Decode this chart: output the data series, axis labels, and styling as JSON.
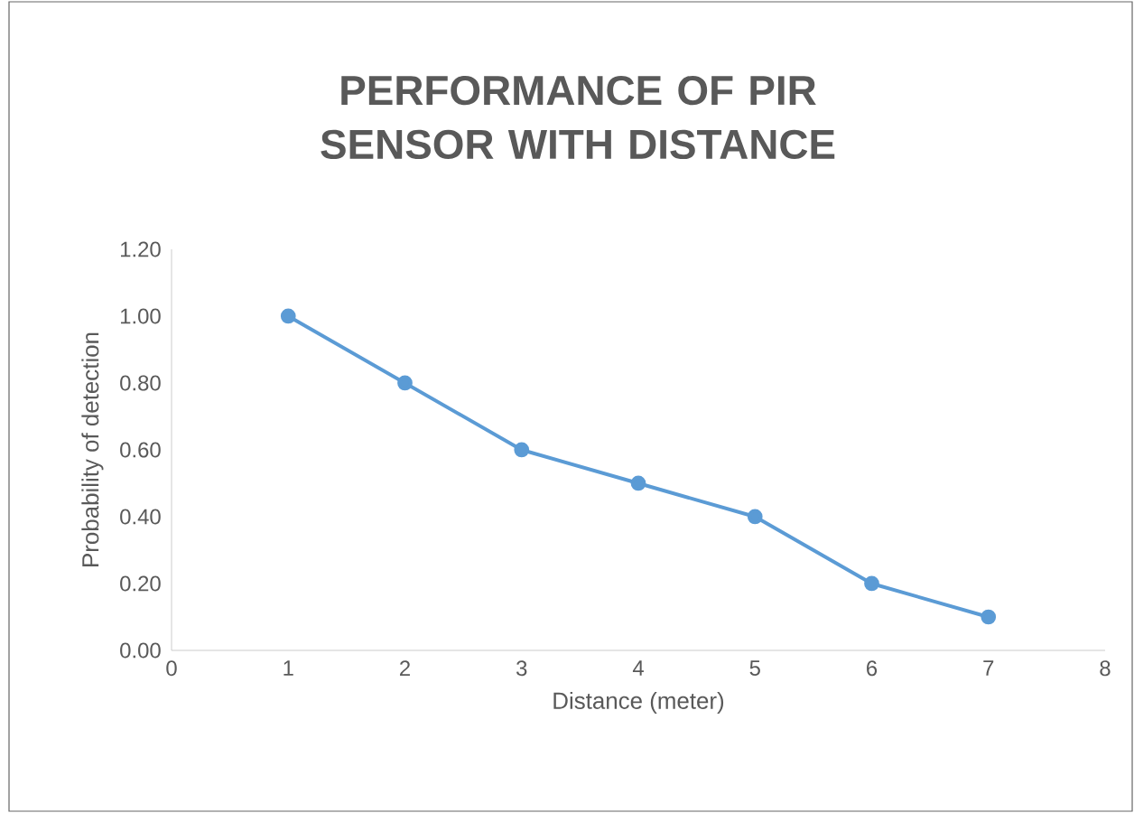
{
  "chart_data": {
    "type": "line",
    "title": "PERFORMANCE OF PIR SENSOR WITH DISTANCE",
    "xlabel": "Distance (meter)",
    "ylabel": "Probability of detection",
    "x": [
      1,
      2,
      3,
      4,
      5,
      6,
      7
    ],
    "series": [
      {
        "color": "#5b9bd5",
        "values": [
          1.0,
          0.8,
          0.6,
          0.5,
          0.4,
          0.2,
          0.1
        ]
      }
    ],
    "xlim": [
      0,
      8
    ],
    "xticks": [
      0,
      1,
      2,
      3,
      4,
      5,
      6,
      7,
      8
    ],
    "ylim": [
      0,
      1.2
    ],
    "yticks": [
      {
        "value": 0,
        "label": "0.00"
      },
      {
        "value": 0.2,
        "label": "0.20"
      },
      {
        "value": 0.4,
        "label": "0.40"
      },
      {
        "value": 0.6,
        "label": "0.60"
      },
      {
        "value": 0.8,
        "label": "0.80"
      },
      {
        "value": 1.0,
        "label": "1.00"
      },
      {
        "value": 1.2,
        "label": "1.20"
      }
    ],
    "marker": "circle",
    "line_style": "solid"
  }
}
